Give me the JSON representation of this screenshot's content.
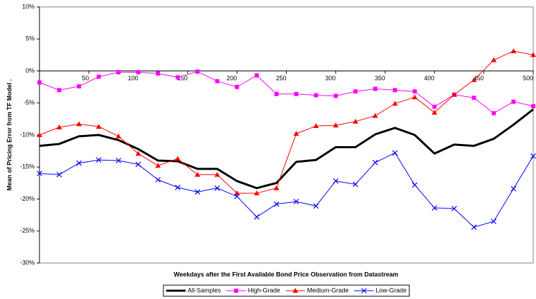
{
  "chart_data": {
    "type": "line",
    "xlabel": "Weekdays after the First Available Bond Price Observation from Datastream",
    "ylabel": "Mean of Pricing Error from TF Model .",
    "x": [
      0,
      20,
      40,
      60,
      80,
      100,
      120,
      140,
      160,
      180,
      200,
      220,
      240,
      260,
      280,
      300,
      320,
      340,
      360,
      380,
      400,
      420,
      440,
      460,
      480,
      500
    ],
    "xlim": [
      0,
      500
    ],
    "xticks": [
      50,
      100,
      150,
      200,
      250,
      300,
      350,
      400,
      450,
      500
    ],
    "ylim": [
      -30,
      10
    ],
    "yticks": [
      {
        "value": -30,
        "label": "-30%"
      },
      {
        "value": -25,
        "label": "-25%"
      },
      {
        "value": -20,
        "label": "-20%"
      },
      {
        "value": -15,
        "label": "-15%"
      },
      {
        "value": -10,
        "label": "-10%"
      },
      {
        "value": -5,
        "label": "-5%"
      },
      {
        "value": 0,
        "label": "0%"
      },
      {
        "value": 5,
        "label": "5%"
      },
      {
        "value": 10,
        "label": "10%"
      }
    ],
    "grid": false,
    "legend": "bottom",
    "series": [
      {
        "name": "All-Samples",
        "color": "#000000",
        "values": [
          -11.7,
          -11.4,
          -10.2,
          -10.0,
          -10.8,
          -12.2,
          -14.0,
          -14.1,
          -15.3,
          -15.3,
          -17.2,
          -18.3,
          -17.5,
          -14.2,
          -13.9,
          -11.9,
          -11.9,
          -9.9,
          -8.9,
          -10.0,
          -12.9,
          -11.5,
          -11.7,
          -10.6,
          -8.4,
          -6.0
        ]
      },
      {
        "name": "High-Grade",
        "color": "#ff00ff",
        "marker": "square",
        "values": [
          -1.8,
          -3.0,
          -2.4,
          -0.9,
          -0.2,
          -0.2,
          -0.4,
          -1.0,
          -0.1,
          -1.6,
          -2.5,
          -0.7,
          -3.6,
          -3.6,
          -3.8,
          -3.9,
          -3.2,
          -2.8,
          -3.0,
          -3.2,
          -5.6,
          -3.7,
          -4.2,
          -6.6,
          -4.8,
          -5.5
        ]
      },
      {
        "name": "Medium-Grade",
        "color": "#ff0000",
        "marker": "triangle",
        "values": [
          -10.0,
          -8.8,
          -8.3,
          -8.7,
          -10.2,
          -12.9,
          -14.8,
          -13.7,
          -16.2,
          -16.2,
          -19.1,
          -19.1,
          -18.3,
          -9.8,
          -8.6,
          -8.5,
          -7.9,
          -7.0,
          -5.1,
          -4.1,
          -6.5,
          -3.7,
          -1.4,
          1.7,
          3.1,
          2.5
        ]
      },
      {
        "name": "Low-Grade",
        "color": "#0000ff",
        "marker": "x",
        "values": [
          -16.0,
          -16.2,
          -14.4,
          -13.9,
          -14.0,
          -14.6,
          -17.0,
          -18.2,
          -18.9,
          -18.3,
          -19.6,
          -22.8,
          -20.8,
          -20.4,
          -21.1,
          -17.2,
          -17.7,
          -14.3,
          -12.8,
          -17.8,
          -21.4,
          -21.5,
          -24.4,
          -23.5,
          -18.4,
          -13.3
        ]
      }
    ]
  }
}
